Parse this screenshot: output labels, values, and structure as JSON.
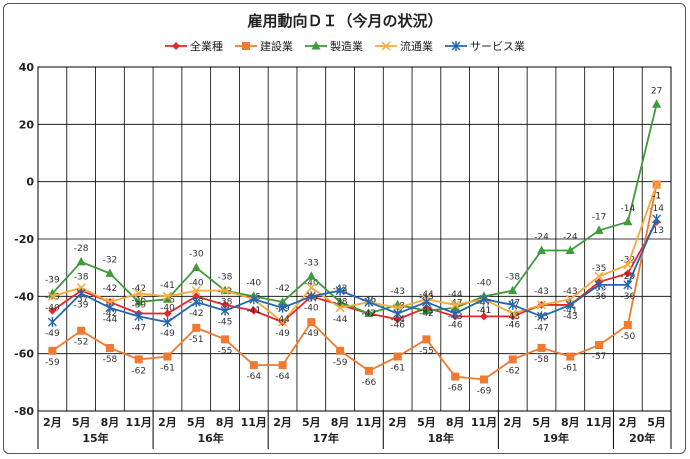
{
  "chart_data": {
    "type": "line",
    "title": "雇用動向ＤＩ（今月の状況）",
    "xlabel": "",
    "ylabel": "",
    "ylim": [
      -80,
      40
    ],
    "yticks": [
      40,
      20,
      0,
      -20,
      -40,
      -60,
      -80
    ],
    "grid": true,
    "legend_position": "top",
    "categories": [
      "2月",
      "5月",
      "8月",
      "11月",
      "2月",
      "5月",
      "8月",
      "11月",
      "2月",
      "5月",
      "8月",
      "11月",
      "2月",
      "5月",
      "8月",
      "11月",
      "2月",
      "5月",
      "8月",
      "11月",
      "2月",
      "5月"
    ],
    "years": [
      {
        "label": "15年",
        "start": 0,
        "end": 3
      },
      {
        "label": "16年",
        "start": 4,
        "end": 7
      },
      {
        "label": "17年",
        "start": 8,
        "end": 11
      },
      {
        "label": "18年",
        "start": 12,
        "end": 15
      },
      {
        "label": "19年",
        "start": 16,
        "end": 19
      },
      {
        "label": "20年",
        "start": 20,
        "end": 21
      }
    ],
    "series": [
      {
        "name": "全業種",
        "color": "#e8262b",
        "marker": "diamond",
        "values": [
          -45,
          -38,
          -42,
          -46,
          -46,
          -40,
          -43,
          -45,
          -49,
          -40,
          -43,
          -46,
          -48,
          -44,
          -47,
          -47,
          -47,
          -43,
          -43,
          -35,
          -32,
          -14
        ]
      },
      {
        "name": "建設業",
        "color": "#f07a30",
        "marker": "square",
        "values": [
          -59,
          -52,
          -58,
          -62,
          -61,
          -51,
          -55,
          -64,
          -64,
          -49,
          -59,
          -66,
          -61,
          -55,
          -68,
          -69,
          -62,
          -58,
          -61,
          -57,
          -50,
          -1
        ]
      },
      {
        "name": "製造業",
        "color": "#3e9a3b",
        "marker": "triangle",
        "values": [
          -39,
          -28,
          -32,
          -42,
          -41,
          -30,
          -38,
          -40,
          -42,
          -33,
          -42,
          -46,
          -43,
          -45,
          -44,
          -40,
          -38,
          -24,
          -24,
          -17,
          -14,
          27
        ]
      },
      {
        "name": "流通業",
        "color": "#f6a93b",
        "marker": "x",
        "values": [
          -40,
          -37,
          -42,
          -39,
          -40,
          -38,
          -38,
          -41,
          -49,
          -37,
          -44,
          -42,
          -44,
          -41,
          -43,
          -41,
          -46,
          -43,
          -41,
          -33,
          -29,
          -1
        ]
      },
      {
        "name": "サービス業",
        "color": "#2467b0",
        "marker": "star",
        "values": [
          -49,
          -39,
          -44,
          -47,
          -49,
          -42,
          -45,
          -41,
          -44,
          -40,
          -38,
          -42,
          -46,
          -42,
          -46,
          -41,
          -43,
          -47,
          -43,
          -36,
          -36,
          -13
        ]
      }
    ]
  }
}
